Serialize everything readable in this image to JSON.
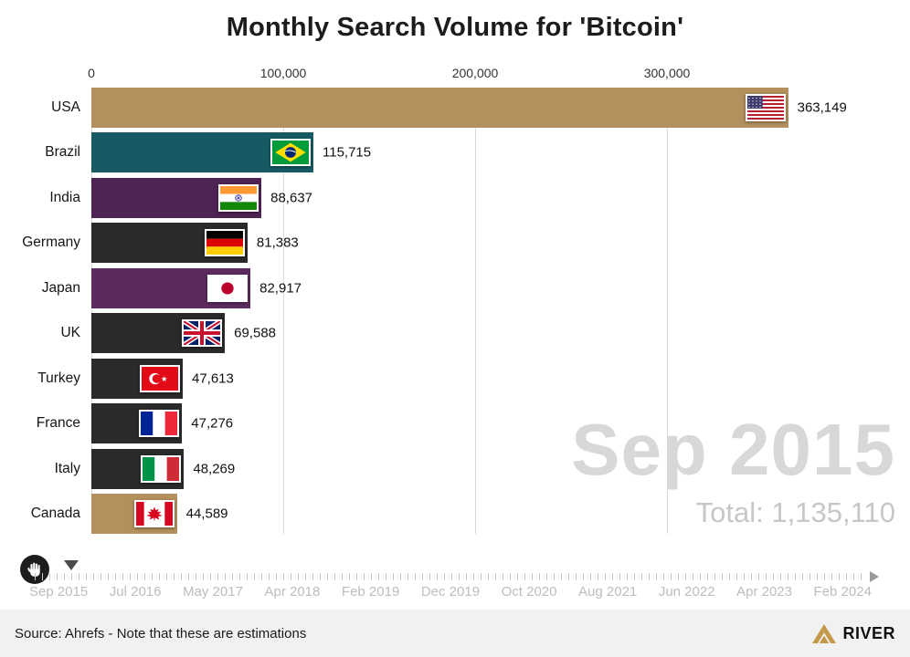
{
  "title": "Monthly Search Volume for 'Bitcoin'",
  "chart_data": {
    "type": "bar",
    "orientation": "horizontal",
    "title": "Monthly Search Volume for 'Bitcoin'",
    "current_period": "Sep 2015",
    "total_label": "Total: 1,135,110",
    "x_axis": {
      "tick_values": [
        0,
        100000,
        200000,
        300000
      ],
      "tick_labels": [
        "0",
        "100,000",
        "200,000",
        "300,000"
      ],
      "max_value": 414285,
      "grid": true
    },
    "categories": [
      "USA",
      "Brazil",
      "India",
      "Germany",
      "Japan",
      "UK",
      "Turkey",
      "France",
      "Italy",
      "Canada"
    ],
    "values": [
      363149,
      115715,
      88637,
      81383,
      82917,
      69588,
      47613,
      47276,
      48269,
      44589
    ],
    "value_labels": [
      "363,149",
      "115,715",
      "88,637",
      "81,383",
      "82,917",
      "69,588",
      "47,613",
      "47,276",
      "48,269",
      "44,589"
    ],
    "bar_colors": [
      "#b3905d",
      "#175a63",
      "#4f2353",
      "#2a2a2a",
      "#5c2a5e",
      "#2a2a2a",
      "#2a2a2a",
      "#2a2a2a",
      "#2a2a2a",
      "#b3905d"
    ],
    "flags": [
      "usa",
      "brazil",
      "india",
      "germany",
      "japan",
      "uk",
      "turkey",
      "france",
      "italy",
      "canada"
    ],
    "legend": "none"
  },
  "timeline": {
    "tick_labels": [
      "Sep 2015",
      "Jul 2016",
      "May 2017",
      "Apr 2018",
      "Feb 2019",
      "Dec 2019",
      "Oct 2020",
      "Aug 2021",
      "Jun 2022",
      "Apr 2023",
      "Feb 2024"
    ],
    "current_position": "Sep 2015"
  },
  "footer": {
    "source_note": "Source: Ahrefs - Note that these are estimations",
    "brand": "RIVER"
  },
  "colors": {
    "accent_gold": "#b3905d",
    "grid": "#d9d9d9",
    "date_text": "#d8d8d8",
    "brand_gold": "#c49a4a"
  }
}
